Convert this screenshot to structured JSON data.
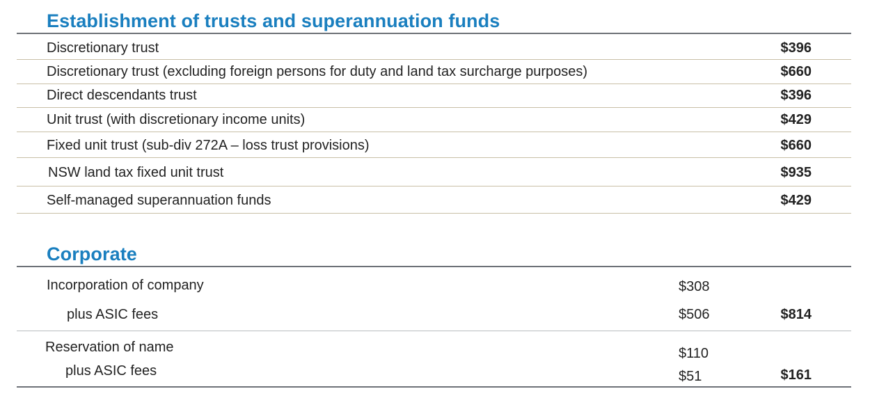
{
  "trusts": {
    "title": "Establishment of trusts and superannuation funds",
    "rows": [
      {
        "label": "Discretionary trust",
        "amount": "$396"
      },
      {
        "label": "Discretionary trust (excluding foreign persons for duty and land tax surcharge purposes)",
        "amount": "$660"
      },
      {
        "label": "Direct descendants trust",
        "amount": "$396"
      },
      {
        "label": "Unit trust  (with discretionary income units)",
        "amount": "$429"
      },
      {
        "label": "Fixed unit trust  (sub-div 272A – loss trust provisions)",
        "amount": "$660"
      },
      {
        "label": "NSW land tax fixed unit trust",
        "amount": "$935"
      },
      {
        "label": "Self-managed superannuation funds",
        "amount": "$429"
      }
    ]
  },
  "corporate": {
    "title": "Corporate",
    "items": [
      {
        "label": "Incorporation of company",
        "fee": "$308",
        "sub_label": "plus ASIC fees",
        "sub_fee": "$506",
        "total": "$814"
      },
      {
        "label": "Reservation of name",
        "fee": "$110",
        "sub_label": "plus ASIC fees",
        "sub_fee": "$51",
        "total": "$161"
      }
    ]
  }
}
